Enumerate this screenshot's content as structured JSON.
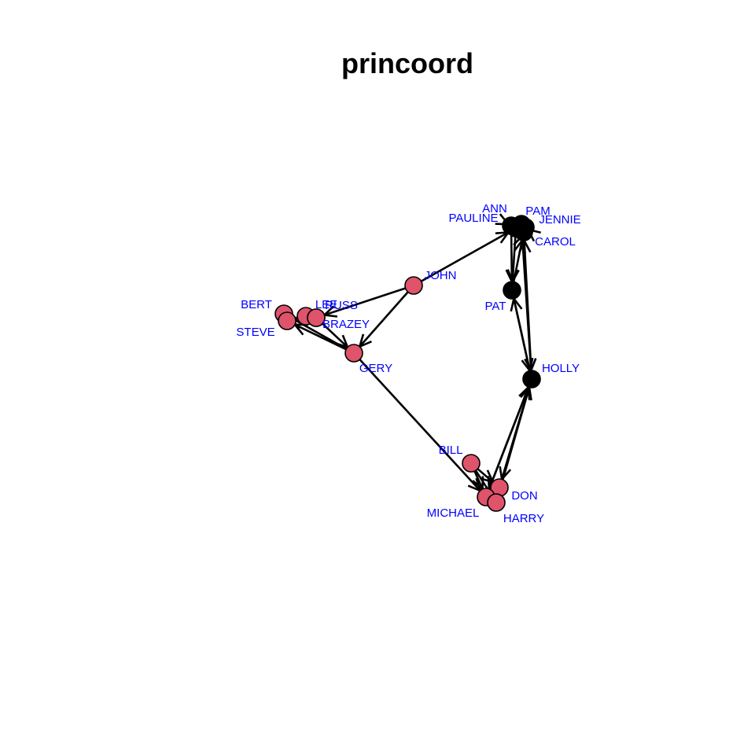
{
  "title": "princoord",
  "colors": {
    "female_node": "#000000",
    "male_node": "#DF536B",
    "label": "#0000FF",
    "edge": "#000000"
  },
  "nodes": [
    {
      "id": "ANN",
      "label": "ANN",
      "group": "female"
    },
    {
      "id": "PAM",
      "label": "PAM",
      "group": "female"
    },
    {
      "id": "PAULINE",
      "label": "PAULINE",
      "group": "female"
    },
    {
      "id": "JENNIE",
      "label": "JENNIE",
      "group": "female"
    },
    {
      "id": "CAROL",
      "label": "CAROL",
      "group": "female"
    },
    {
      "id": "PAT",
      "label": "PAT",
      "group": "female"
    },
    {
      "id": "HOLLY",
      "label": "HOLLY",
      "group": "female"
    },
    {
      "id": "JOHN",
      "label": "JOHN",
      "group": "male"
    },
    {
      "id": "BERT",
      "label": "BERT",
      "group": "male"
    },
    {
      "id": "STEVE",
      "label": "STEVE",
      "group": "male"
    },
    {
      "id": "LEE",
      "label": "LEE",
      "group": "male"
    },
    {
      "id": "RUSS",
      "label": "RUSS",
      "group": "male"
    },
    {
      "id": "BRAZEY",
      "label": "BRAZEY",
      "group": "male"
    },
    {
      "id": "GERY",
      "label": "GERY",
      "group": "male"
    },
    {
      "id": "BILL",
      "label": "BILL",
      "group": "male"
    },
    {
      "id": "DON",
      "label": "DON",
      "group": "male"
    },
    {
      "id": "MICHAEL",
      "label": "MICHAEL",
      "group": "male"
    },
    {
      "id": "HARRY",
      "label": "HARRY",
      "group": "male"
    }
  ],
  "edges": [
    {
      "from": "JOHN",
      "to": "PAULINE"
    },
    {
      "from": "JOHN",
      "to": "RUSS"
    },
    {
      "from": "JOHN",
      "to": "GERY"
    },
    {
      "from": "ANN",
      "to": "PAT"
    },
    {
      "from": "PAM",
      "to": "HOLLY"
    },
    {
      "from": "PAULINE",
      "to": "PAT"
    },
    {
      "from": "PAT",
      "to": "CAROL"
    },
    {
      "from": "HOLLY",
      "to": "CAROL"
    },
    {
      "from": "HOLLY",
      "to": "PAT"
    },
    {
      "from": "PAT",
      "to": "HOLLY"
    },
    {
      "from": "DON",
      "to": "HOLLY"
    },
    {
      "from": "MICHAEL",
      "to": "HOLLY"
    },
    {
      "from": "HARRY",
      "to": "HOLLY"
    },
    {
      "from": "HOLLY",
      "to": "DON"
    },
    {
      "from": "HOLLY",
      "to": "MICHAEL"
    },
    {
      "from": "GERY",
      "to": "MICHAEL"
    },
    {
      "from": "GERY",
      "to": "BERT"
    },
    {
      "from": "GERY",
      "to": "STEVE"
    },
    {
      "from": "BRAZEY",
      "to": "LEE"
    },
    {
      "from": "STEVE",
      "to": "LEE"
    },
    {
      "from": "RUSS",
      "to": "GERY"
    },
    {
      "from": "BILL",
      "to": "MICHAEL"
    },
    {
      "from": "BILL",
      "to": "DON"
    },
    {
      "from": "BILL",
      "to": "HARRY"
    },
    {
      "from": "DON",
      "to": "MICHAEL"
    },
    {
      "from": "HARRY",
      "to": "DON"
    },
    {
      "from": "JENNIE",
      "to": "PAM"
    },
    {
      "from": "CAROL",
      "to": "JENNIE"
    },
    {
      "from": "ANN",
      "to": "PAULINE"
    }
  ]
}
